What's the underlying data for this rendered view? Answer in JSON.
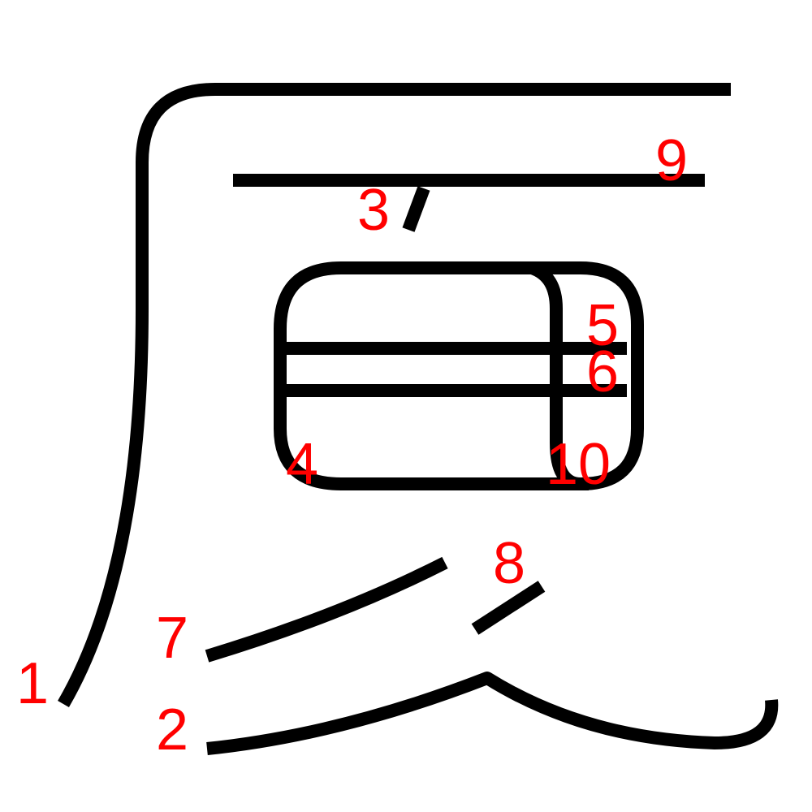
{
  "colors": {
    "background": "#ffffff",
    "stroke": "#000000",
    "label": "#ff0000"
  },
  "stroke_numbers": [
    "1",
    "2",
    "3",
    "4",
    "5",
    "6",
    "7",
    "8",
    "9",
    "10"
  ]
}
